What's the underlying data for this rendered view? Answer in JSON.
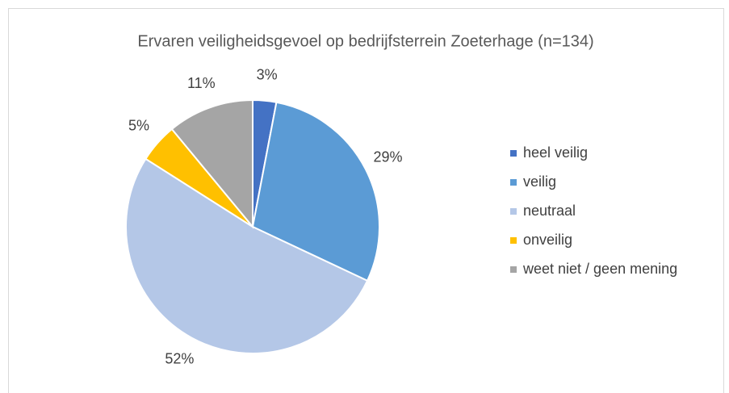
{
  "chart_data": {
    "type": "pie",
    "title": "Ervaren veiligheidsgevoel op bedrijfsterrein Zoeterhage (n=134)",
    "categories": [
      "heel veilig",
      "veilig",
      "neutraal",
      "onveilig",
      "weet niet / geen mening"
    ],
    "values": [
      3,
      29,
      52,
      5,
      11
    ],
    "value_labels": [
      "3%",
      "29%",
      "52%",
      "5%",
      "11%"
    ],
    "colors": [
      "#4472c4",
      "#5b9bd5",
      "#b4c7e7",
      "#ffc000",
      "#a5a5a5"
    ],
    "legend": "right"
  }
}
